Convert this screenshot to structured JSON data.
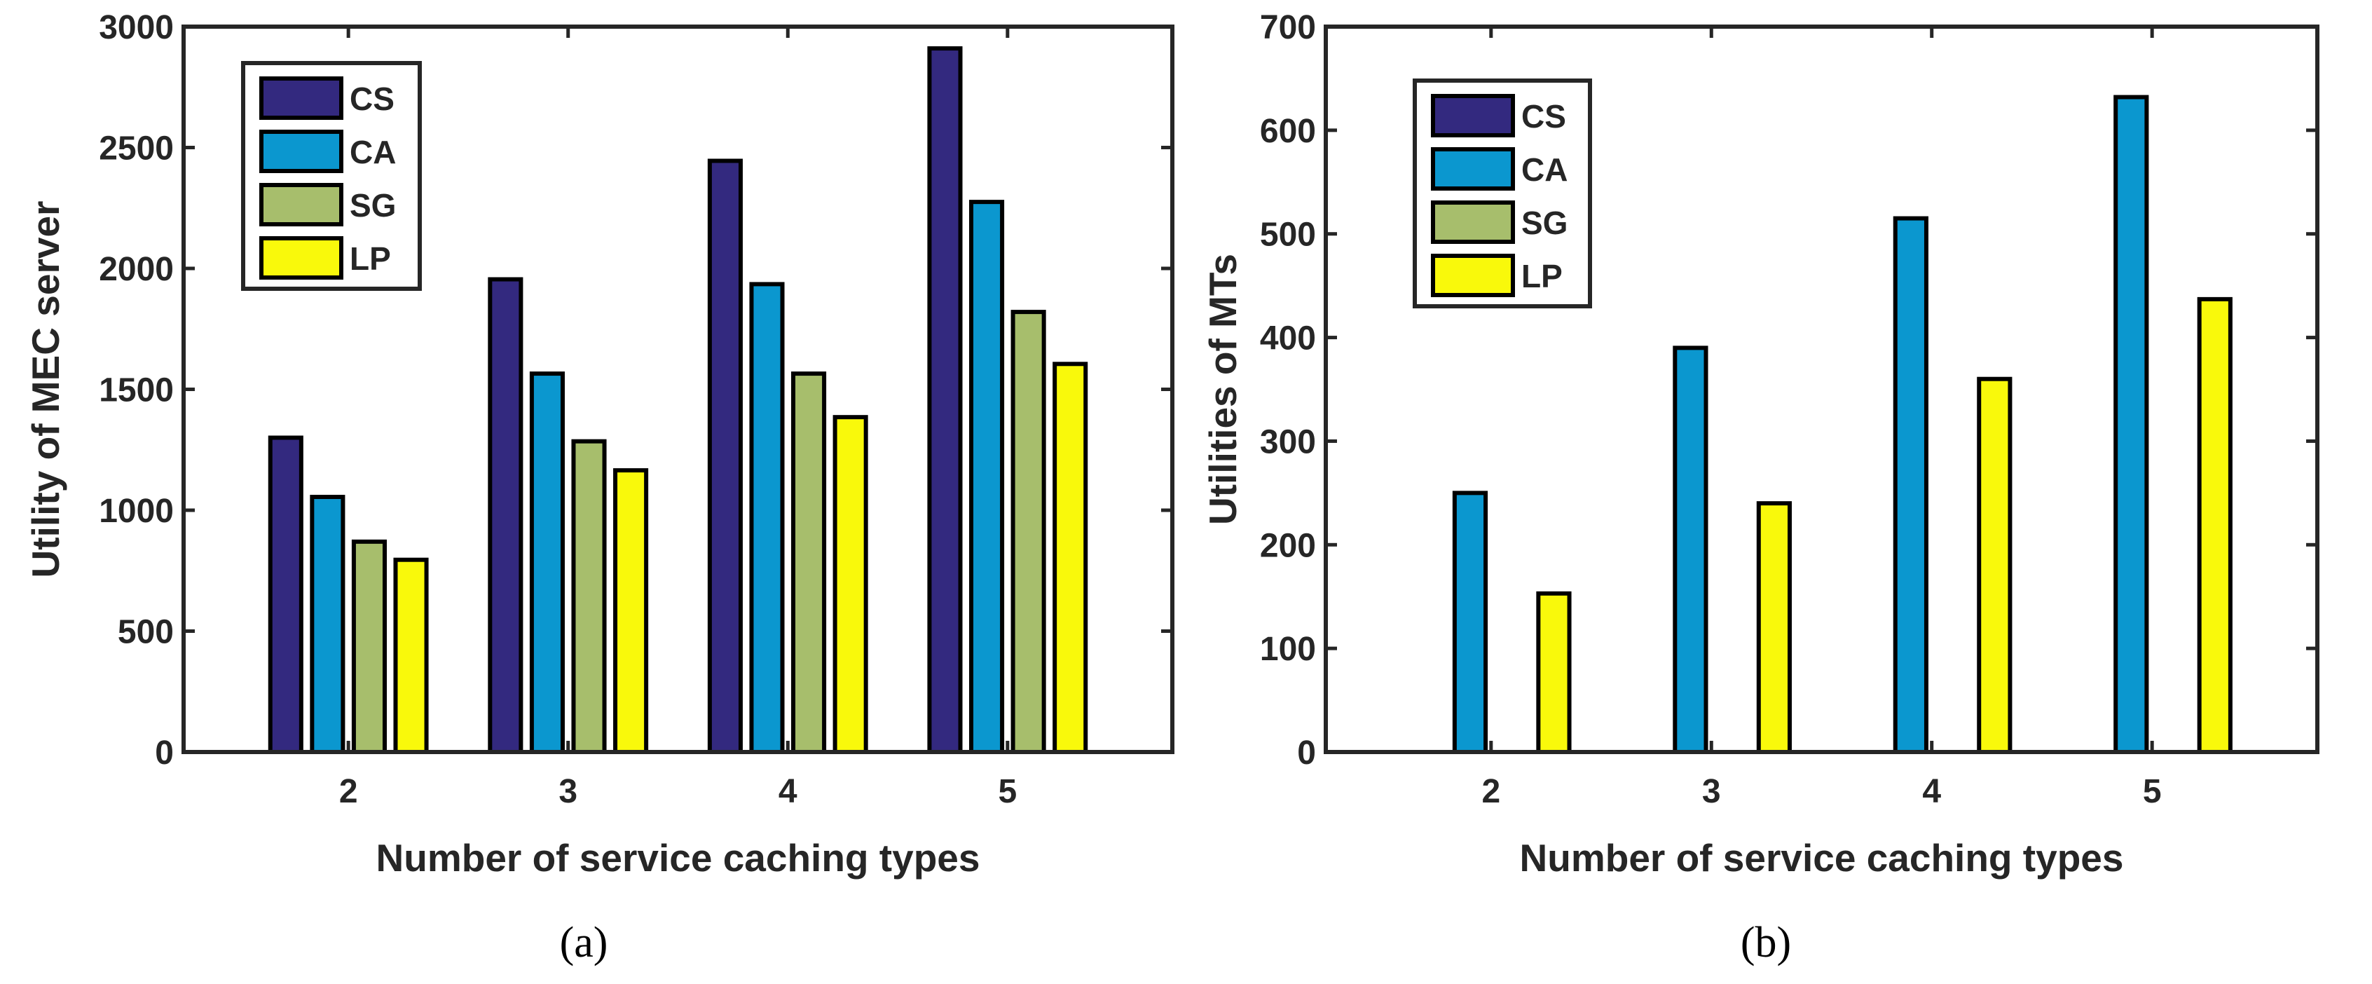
{
  "chart_data": [
    {
      "type": "bar",
      "id": "a",
      "caption": "(a)",
      "xlabel": "Number of service caching types",
      "ylabel": "Utility of MEC server",
      "categories": [
        "2",
        "3",
        "4",
        "5"
      ],
      "ylim": [
        0,
        3000
      ],
      "yticks": [
        0,
        500,
        1000,
        1500,
        2000,
        2500,
        3000
      ],
      "ytick_labels": [
        "0",
        "500",
        "1000",
        "1500",
        "2000",
        "2500",
        "3000"
      ],
      "legend_position": "top-left",
      "series": [
        {
          "name": "CS",
          "color": "#33297f",
          "values": [
            1300,
            1955,
            2445,
            2910
          ]
        },
        {
          "name": "CA",
          "color": "#0b97cf",
          "values": [
            1055,
            1565,
            1935,
            2275
          ]
        },
        {
          "name": "SG",
          "color": "#a7be6c",
          "values": [
            870,
            1285,
            1565,
            1820
          ]
        },
        {
          "name": "LP",
          "color": "#f9f90b",
          "values": [
            795,
            1165,
            1385,
            1605
          ]
        }
      ]
    },
    {
      "type": "bar",
      "id": "b",
      "caption": "(b)",
      "xlabel": "Number of service caching types",
      "ylabel": "Utilities of MTs",
      "categories": [
        "2",
        "3",
        "4",
        "5"
      ],
      "ylim": [
        0,
        700
      ],
      "yticks": [
        0,
        100,
        200,
        300,
        400,
        500,
        600,
        700
      ],
      "ytick_labels": [
        "0",
        "100",
        "200",
        "300",
        "400",
        "500",
        "600",
        "700"
      ],
      "legend_position": "top-left",
      "series": [
        {
          "name": "CS",
          "color": "#33297f",
          "values": [
            0,
            0,
            0,
            0
          ]
        },
        {
          "name": "CA",
          "color": "#0b97cf",
          "values": [
            250,
            390,
            515,
            632
          ]
        },
        {
          "name": "SG",
          "color": "#a7be6c",
          "values": [
            0,
            0,
            0,
            0
          ]
        },
        {
          "name": "LP",
          "color": "#f9f90b",
          "values": [
            153,
            240,
            360,
            437
          ]
        }
      ]
    }
  ]
}
